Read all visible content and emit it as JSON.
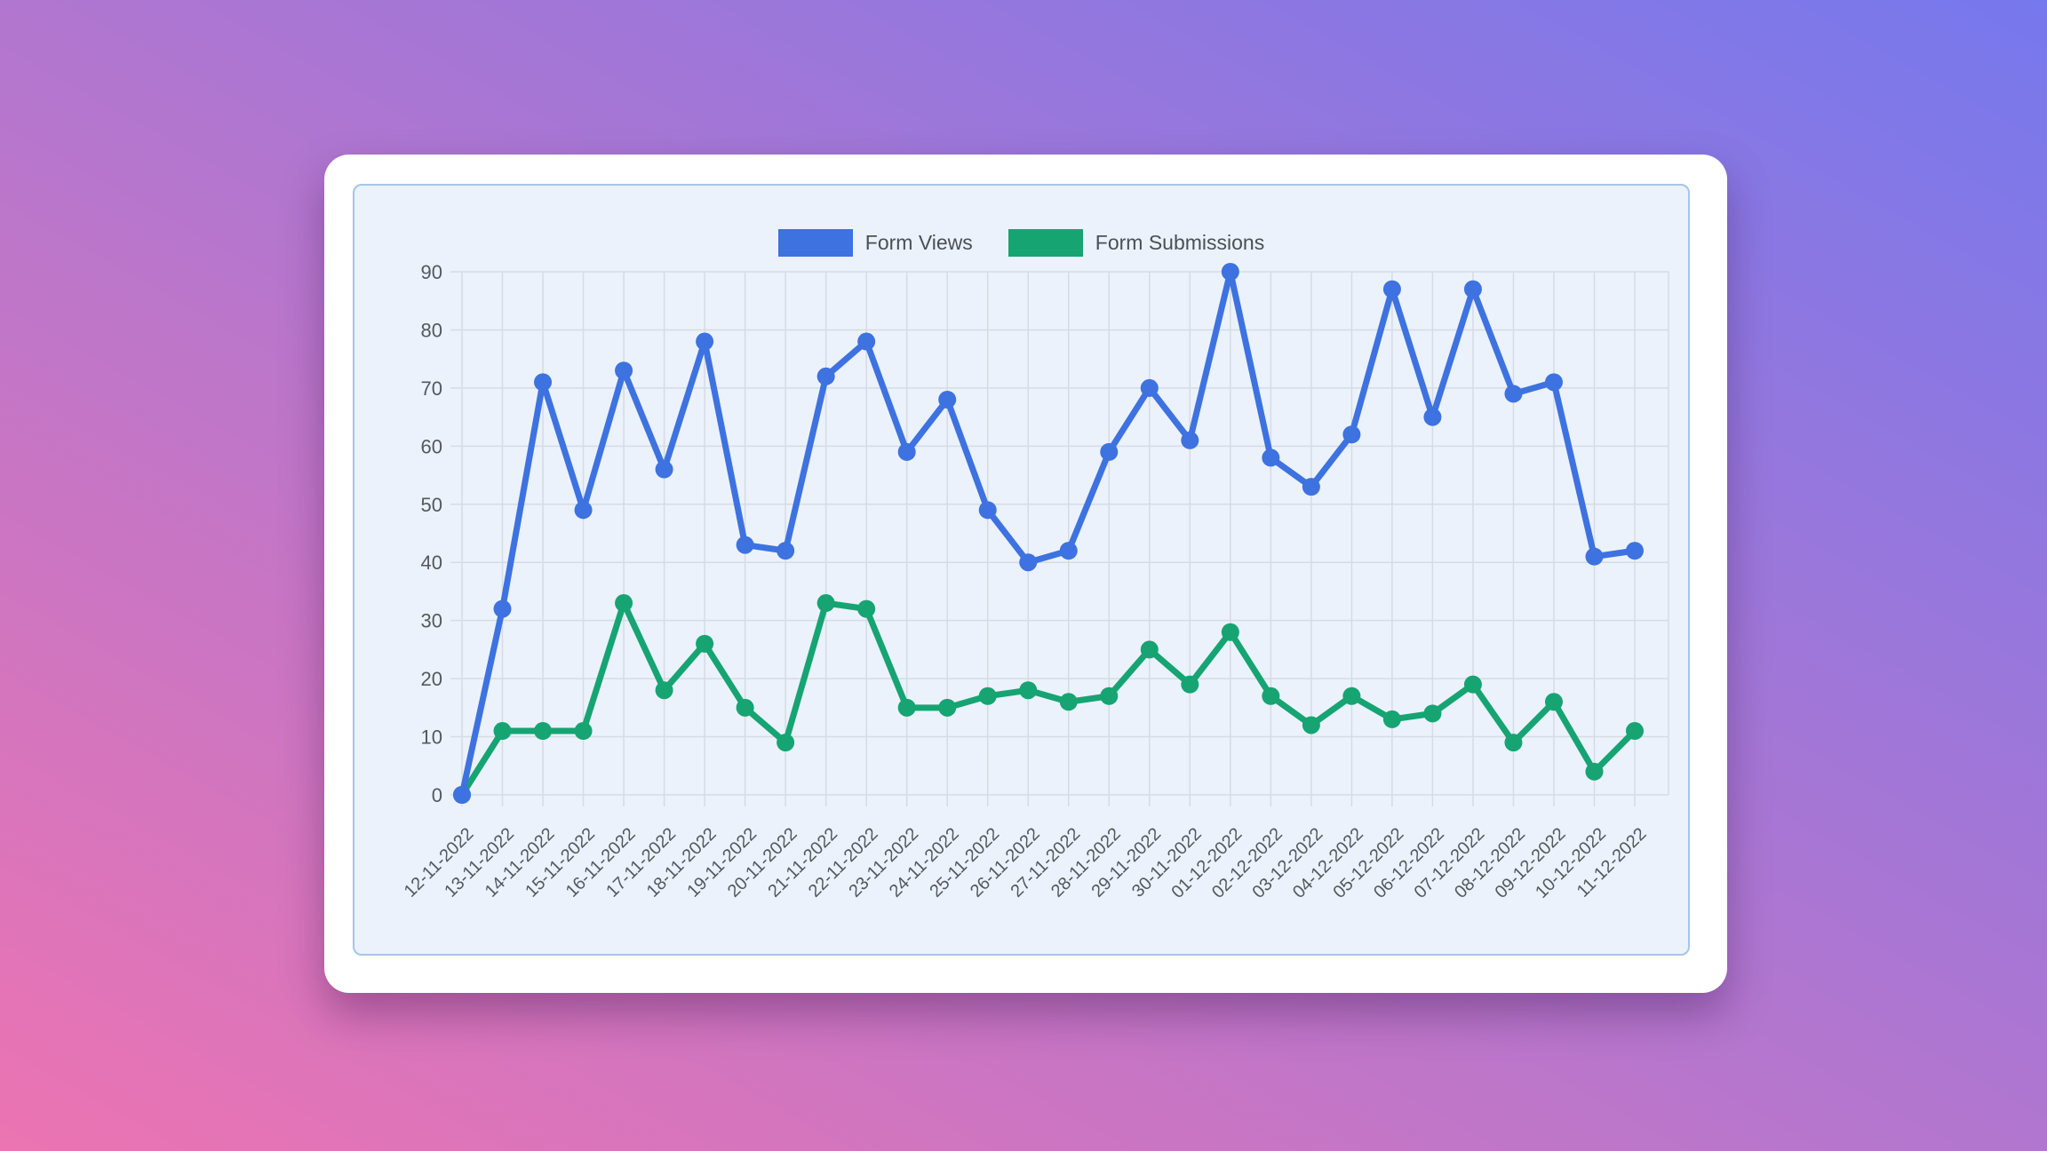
{
  "page": {
    "background_gradient": {
      "from_bottom_left": "#ec74b2",
      "to_top_right": "#7678ed"
    },
    "card_color": "#ffffff",
    "panel_color": "#ebf2fb",
    "panel_border_color": "#a6c6e8",
    "grid_color": "#d7dbe2",
    "axis_text_color": "#55585e"
  },
  "chart_data": {
    "type": "line",
    "x": [
      "12-11-2022",
      "13-11-2022",
      "14-11-2022",
      "15-11-2022",
      "16-11-2022",
      "17-11-2022",
      "18-11-2022",
      "19-11-2022",
      "20-11-2022",
      "21-11-2022",
      "22-11-2022",
      "23-11-2022",
      "24-11-2022",
      "25-11-2022",
      "26-11-2022",
      "27-11-2022",
      "28-11-2022",
      "29-11-2022",
      "30-11-2022",
      "01-12-2022",
      "02-12-2022",
      "03-12-2022",
      "04-12-2022",
      "05-12-2022",
      "06-12-2022",
      "07-12-2022",
      "08-12-2022",
      "09-12-2022",
      "10-12-2022",
      "11-12-2022"
    ],
    "series": [
      {
        "name": "Form Views",
        "color": "#3d72e0",
        "values": [
          0,
          32,
          71,
          49,
          73,
          56,
          78,
          43,
          42,
          72,
          78,
          59,
          68,
          49,
          40,
          42,
          59,
          70,
          61,
          90,
          58,
          53,
          62,
          87,
          65,
          87,
          69,
          71,
          41,
          42
        ]
      },
      {
        "name": "Form Submissions",
        "color": "#16a472",
        "values": [
          0,
          11,
          11,
          11,
          33,
          18,
          26,
          15,
          9,
          33,
          32,
          15,
          15,
          17,
          18,
          16,
          17,
          25,
          19,
          28,
          17,
          12,
          17,
          13,
          14,
          19,
          9,
          16,
          4,
          11
        ]
      }
    ],
    "title": "",
    "xlabel": "",
    "ylabel": "",
    "ylim": [
      0,
      90
    ],
    "yticks": [
      0,
      10,
      20,
      30,
      40,
      50,
      60,
      70,
      80,
      90
    ],
    "grid": true,
    "legend_position": "top",
    "x_tick_rotation_deg": -45
  }
}
